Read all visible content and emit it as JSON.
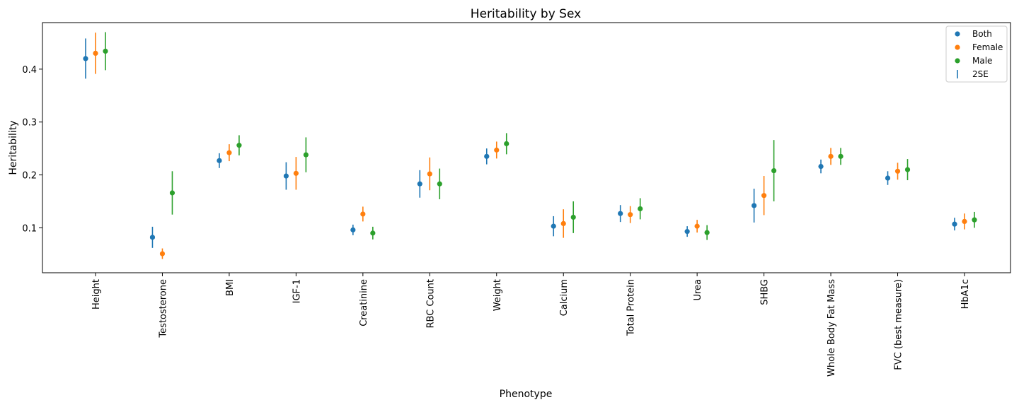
{
  "chart_data": {
    "type": "scatter",
    "title": "Heritability by Sex",
    "xlabel": "Phenotype",
    "ylabel": "Heritability",
    "ylim": [
      0.015,
      0.488
    ],
    "yticks": [
      0.1,
      0.2,
      0.3,
      0.4
    ],
    "ytick_labels": [
      "0.1",
      "0.2",
      "0.3",
      "0.4"
    ],
    "grid": false,
    "legend_position": "top-right",
    "categories": [
      "Height",
      "Testosterone",
      "BMI",
      "IGF-1",
      "Creatinine",
      "RBC Count",
      "Weight",
      "Calcium",
      "Total Protein",
      "Urea",
      "SHBG",
      "Whole Body Fat Mass",
      "FVC (best measure)",
      "HbA1c"
    ],
    "error_bar_label": "2SE",
    "series": [
      {
        "name": "Both",
        "color": "#1f77b4",
        "values": [
          0.42,
          0.082,
          0.227,
          0.198,
          0.096,
          0.183,
          0.235,
          0.103,
          0.127,
          0.093,
          0.142,
          0.216,
          0.194,
          0.107
        ],
        "error_2se": [
          0.038,
          0.02,
          0.014,
          0.026,
          0.01,
          0.026,
          0.015,
          0.019,
          0.016,
          0.01,
          0.032,
          0.013,
          0.013,
          0.012
        ]
      },
      {
        "name": "Female",
        "color": "#ff7f0e",
        "values": [
          0.43,
          0.051,
          0.242,
          0.203,
          0.126,
          0.202,
          0.247,
          0.108,
          0.125,
          0.103,
          0.161,
          0.235,
          0.207,
          0.112
        ],
        "error_2se": [
          0.039,
          0.01,
          0.016,
          0.031,
          0.014,
          0.031,
          0.016,
          0.027,
          0.016,
          0.012,
          0.037,
          0.016,
          0.016,
          0.015
        ]
      },
      {
        "name": "Male",
        "color": "#2ca02c",
        "values": [
          0.434,
          0.166,
          0.256,
          0.238,
          0.09,
          0.183,
          0.259,
          0.12,
          0.136,
          0.091,
          0.208,
          0.235,
          0.21,
          0.115
        ],
        "error_2se": [
          0.036,
          0.041,
          0.019,
          0.033,
          0.012,
          0.029,
          0.02,
          0.03,
          0.02,
          0.014,
          0.058,
          0.016,
          0.02,
          0.015
        ]
      }
    ]
  }
}
